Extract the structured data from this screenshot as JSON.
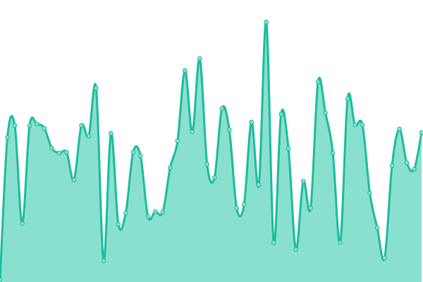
{
  "chart_data": {
    "type": "area",
    "title": "",
    "xlabel": "",
    "ylabel": "",
    "grid": false,
    "legend": "none",
    "ylim": [
      0,
      400
    ],
    "colors": {
      "line": "#1abc9c",
      "fill": "#8ae0cf",
      "point_fill": "#8ae0cf",
      "point_stroke": "#1abc9c"
    },
    "values": [
      3,
      205,
      222,
      83,
      222,
      224,
      218,
      190,
      183,
      184,
      145,
      222,
      207,
      275,
      30,
      211,
      82,
      98,
      184,
      179,
      93,
      100,
      99,
      162,
      200,
      300,
      213,
      317,
      167,
      148,
      246,
      216,
      105,
      110,
      227,
      138,
      369,
      56,
      238,
      189,
      46,
      143,
      105,
      284,
      240,
      183,
      56,
      260,
      223,
      223,
      126,
      77,
      34,
      165,
      217,
      169,
      160,
      212
    ]
  }
}
